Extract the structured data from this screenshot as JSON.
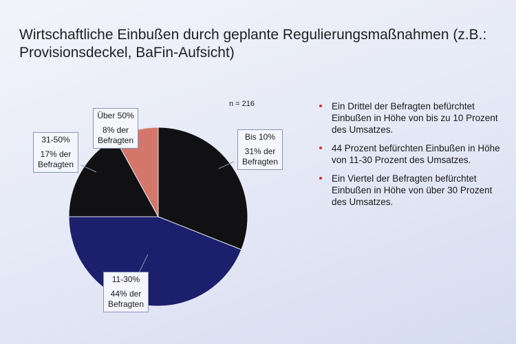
{
  "chart_data": {
    "type": "pie",
    "title": "Wirtschaftliche Einbußen durch geplante Regulierungsmaßnahmen (z.B.: Provisionsdeckel, BaFin-Aufsicht)",
    "annotation": "n = 216",
    "categories": [
      "Bis 10%",
      "11-30%",
      "31-50%",
      "Über 50%"
    ],
    "values": [
      31,
      44,
      17,
      8
    ],
    "value_labels": [
      "31% der Befragten",
      "44% der Befragten",
      "17% der Befragten",
      "8% der Befragten"
    ],
    "colors": [
      "#111114",
      "#1b1f6c",
      "#111114",
      "#d4766a"
    ]
  },
  "bullets": [
    "Ein Drittel der Befragten befürchtet Einbußen in Höhe von bis zu 10 Prozent des Umsatzes.",
    "44 Prozent befürchten Einbußen in Höhe von 11-30 Prozent des Umsatzes.",
    "Ein Viertel der Befragten befürchtet Einbußen in Höhe von über 30 Prozent des Umsatzes."
  ]
}
